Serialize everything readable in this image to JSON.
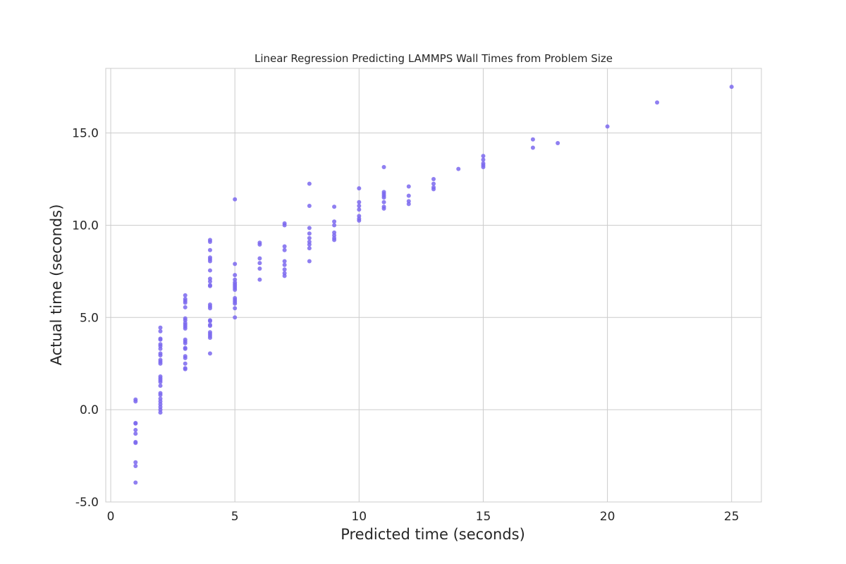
{
  "chart_data": {
    "type": "scatter",
    "title": "Linear Regression Predicting LAMMPS Wall Times from Problem Size",
    "xlabel": "Predicted time (seconds)",
    "ylabel": "Actual time (seconds)",
    "xlim": [
      -0.2,
      26.2
    ],
    "ylim": [
      -5.0,
      18.5
    ],
    "x_ticks": [
      0,
      5,
      10,
      15,
      20,
      25
    ],
    "x_tick_labels": [
      "0",
      "5",
      "10",
      "15",
      "20",
      "25"
    ],
    "y_ticks": [
      -5,
      0,
      5,
      10,
      15
    ],
    "y_tick_labels": [
      "-5.0",
      "0.0",
      "5.0",
      "10.0",
      "15.0"
    ],
    "grid": true,
    "point_color": "#7b68ee",
    "points": [
      [
        1,
        0.55
      ],
      [
        1,
        0.45
      ],
      [
        1,
        -0.72
      ],
      [
        1,
        -0.75
      ],
      [
        1,
        -1.1
      ],
      [
        1,
        -1.3
      ],
      [
        1,
        -1.75
      ],
      [
        1,
        -1.8
      ],
      [
        1,
        -2.85
      ],
      [
        1,
        -3.05
      ],
      [
        1,
        -3.95
      ],
      [
        2,
        4.45
      ],
      [
        2,
        4.25
      ],
      [
        2,
        3.85
      ],
      [
        2,
        3.8
      ],
      [
        2,
        3.55
      ],
      [
        2,
        3.45
      ],
      [
        2,
        3.3
      ],
      [
        2,
        3.05
      ],
      [
        2,
        2.95
      ],
      [
        2,
        2.7
      ],
      [
        2,
        2.6
      ],
      [
        2,
        2.5
      ],
      [
        2,
        1.8
      ],
      [
        2,
        1.7
      ],
      [
        2,
        1.6
      ],
      [
        2,
        1.5
      ],
      [
        2,
        1.3
      ],
      [
        2,
        0.9
      ],
      [
        2,
        0.8
      ],
      [
        2,
        0.6
      ],
      [
        2,
        0.45
      ],
      [
        2,
        0.3
      ],
      [
        2,
        0.15
      ],
      [
        2,
        0.0
      ],
      [
        2,
        -0.15
      ],
      [
        3,
        6.2
      ],
      [
        3,
        6.0
      ],
      [
        3,
        5.9
      ],
      [
        3,
        5.8
      ],
      [
        3,
        5.55
      ],
      [
        3,
        4.95
      ],
      [
        3,
        4.85
      ],
      [
        3,
        4.7
      ],
      [
        3,
        4.6
      ],
      [
        3,
        4.5
      ],
      [
        3,
        4.4
      ],
      [
        3,
        3.8
      ],
      [
        3,
        3.7
      ],
      [
        3,
        3.6
      ],
      [
        3,
        3.35
      ],
      [
        3,
        3.3
      ],
      [
        3,
        2.9
      ],
      [
        3,
        2.8
      ],
      [
        3,
        2.5
      ],
      [
        3,
        2.25
      ],
      [
        3,
        2.2
      ],
      [
        4,
        9.2
      ],
      [
        4,
        9.1
      ],
      [
        4,
        8.65
      ],
      [
        4,
        8.25
      ],
      [
        4,
        8.15
      ],
      [
        4,
        8.05
      ],
      [
        4,
        7.55
      ],
      [
        4,
        7.1
      ],
      [
        4,
        6.95
      ],
      [
        4,
        6.75
      ],
      [
        4,
        6.7
      ],
      [
        4,
        5.7
      ],
      [
        4,
        5.6
      ],
      [
        4,
        5.5
      ],
      [
        4,
        4.85
      ],
      [
        4,
        4.8
      ],
      [
        4,
        4.6
      ],
      [
        4,
        4.55
      ],
      [
        4,
        4.2
      ],
      [
        4,
        4.1
      ],
      [
        4,
        4.0
      ],
      [
        4,
        3.9
      ],
      [
        4,
        3.05
      ],
      [
        5,
        11.4
      ],
      [
        5,
        7.9
      ],
      [
        5,
        7.3
      ],
      [
        5,
        7.05
      ],
      [
        5,
        6.9
      ],
      [
        5,
        6.8
      ],
      [
        5,
        6.7
      ],
      [
        5,
        6.6
      ],
      [
        5,
        6.5
      ],
      [
        5,
        6.05
      ],
      [
        5,
        5.95
      ],
      [
        5,
        5.85
      ],
      [
        5,
        5.75
      ],
      [
        5,
        5.5
      ],
      [
        5,
        5.0
      ],
      [
        6,
        9.05
      ],
      [
        6,
        8.95
      ],
      [
        6,
        8.2
      ],
      [
        6,
        7.95
      ],
      [
        6,
        7.65
      ],
      [
        6,
        7.05
      ],
      [
        7,
        10.1
      ],
      [
        7,
        10.0
      ],
      [
        7,
        8.85
      ],
      [
        7,
        8.65
      ],
      [
        7,
        8.05
      ],
      [
        7,
        7.85
      ],
      [
        7,
        7.6
      ],
      [
        7,
        7.4
      ],
      [
        7,
        7.25
      ],
      [
        8,
        12.25
      ],
      [
        8,
        11.05
      ],
      [
        8,
        9.85
      ],
      [
        8,
        9.55
      ],
      [
        8,
        9.3
      ],
      [
        8,
        9.1
      ],
      [
        8,
        8.95
      ],
      [
        8,
        8.75
      ],
      [
        8,
        8.05
      ],
      [
        9,
        11.0
      ],
      [
        9,
        10.2
      ],
      [
        9,
        10.0
      ],
      [
        9,
        9.6
      ],
      [
        9,
        9.45
      ],
      [
        9,
        9.3
      ],
      [
        9,
        9.2
      ],
      [
        10,
        12.0
      ],
      [
        10,
        11.25
      ],
      [
        10,
        11.05
      ],
      [
        10,
        10.85
      ],
      [
        10,
        10.5
      ],
      [
        10,
        10.35
      ],
      [
        10,
        10.25
      ],
      [
        11,
        13.15
      ],
      [
        11,
        11.8
      ],
      [
        11,
        11.7
      ],
      [
        11,
        11.6
      ],
      [
        11,
        11.5
      ],
      [
        11,
        11.25
      ],
      [
        11,
        11.0
      ],
      [
        11,
        10.9
      ],
      [
        12,
        12.1
      ],
      [
        12,
        11.6
      ],
      [
        12,
        11.3
      ],
      [
        12,
        11.15
      ],
      [
        13,
        12.5
      ],
      [
        13,
        12.25
      ],
      [
        13,
        12.05
      ],
      [
        13,
        11.95
      ],
      [
        14,
        13.05
      ],
      [
        15,
        13.75
      ],
      [
        15,
        13.55
      ],
      [
        15,
        13.35
      ],
      [
        15,
        13.25
      ],
      [
        15,
        13.15
      ],
      [
        17,
        14.65
      ],
      [
        17,
        14.2
      ],
      [
        18,
        14.45
      ],
      [
        20,
        15.35
      ],
      [
        22,
        16.65
      ],
      [
        25,
        17.5
      ]
    ]
  }
}
